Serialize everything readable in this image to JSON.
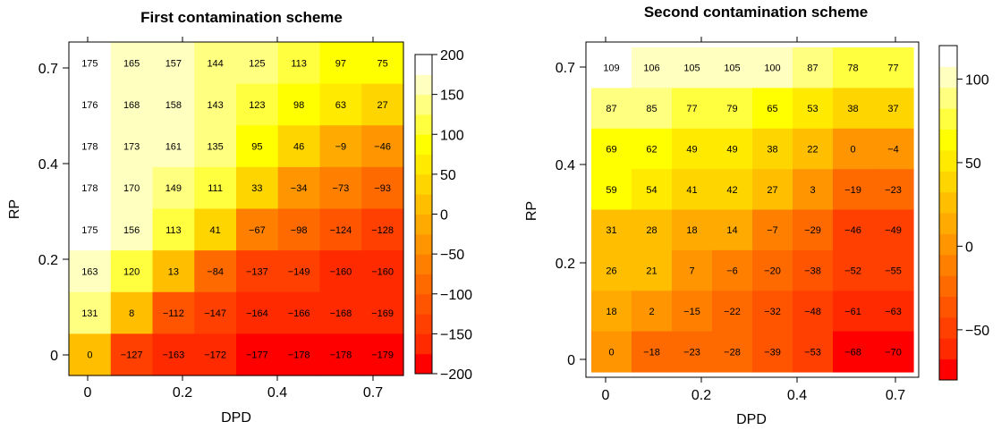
{
  "chart_data": [
    {
      "type": "heatmap",
      "title": "First contamination scheme",
      "xlabel": "DPD",
      "ylabel": "RP",
      "x_tick_labels": [
        "0",
        "0.2",
        "0.4",
        "0.7"
      ],
      "y_tick_labels": [
        "0",
        "0.2",
        "0.4",
        "0.7"
      ],
      "values": [
        [
          175,
          165,
          157,
          144,
          125,
          113,
          97,
          75
        ],
        [
          176,
          168,
          158,
          143,
          123,
          98,
          63,
          27
        ],
        [
          178,
          173,
          161,
          135,
          95,
          46,
          -9,
          -46
        ],
        [
          178,
          170,
          149,
          111,
          33,
          -34,
          -73,
          -93
        ],
        [
          175,
          156,
          113,
          41,
          -67,
          -98,
          -124,
          -128
        ],
        [
          163,
          120,
          13,
          -84,
          -137,
          -149,
          -160,
          -160
        ],
        [
          131,
          8,
          -112,
          -147,
          -164,
          -166,
          -168,
          -169
        ],
        [
          0,
          -127,
          -163,
          -172,
          -177,
          -178,
          -178,
          -179
        ]
      ],
      "labels": [
        [
          "175",
          "165",
          "157",
          "144",
          "125",
          "113",
          "97",
          "75"
        ],
        [
          "176",
          "168",
          "158",
          "143",
          "123",
          "98",
          "63",
          "27"
        ],
        [
          "178",
          "173",
          "161",
          "135",
          "95",
          "46",
          "−9",
          "−46"
        ],
        [
          "178",
          "170",
          "149",
          "111",
          "33",
          "−34",
          "−73",
          "−93"
        ],
        [
          "175",
          "156",
          "113",
          "41",
          "−67",
          "−98",
          "−124",
          "−128"
        ],
        [
          "163",
          "120",
          "13",
          "−84",
          "−137",
          "−149",
          "−160",
          "−160"
        ],
        [
          "131",
          "8",
          "−112",
          "−147",
          "−164",
          "−166",
          "−168",
          "−169"
        ],
        [
          "0",
          "−127",
          "−163",
          "−172",
          "−177",
          "−178",
          "−178",
          "−179"
        ]
      ],
      "color_range": [
        -200,
        200
      ],
      "colorbar_ticks": [
        -200,
        -150,
        -100,
        -50,
        0,
        50,
        100,
        150,
        200
      ],
      "colorbar_tick_labels": [
        "−200",
        "−150",
        "−100",
        "−50",
        "0",
        "50",
        "100",
        "150",
        "200"
      ]
    },
    {
      "type": "heatmap",
      "title": "Second contamination scheme",
      "xlabel": "DPD",
      "ylabel": "RP",
      "x_tick_labels": [
        "0",
        "0.2",
        "0.4",
        "0.7"
      ],
      "y_tick_labels": [
        "0",
        "0.2",
        "0.4",
        "0.7"
      ],
      "values": [
        [
          109,
          106,
          105,
          105,
          100,
          87,
          78,
          77
        ],
        [
          87,
          85,
          77,
          79,
          65,
          53,
          38,
          37
        ],
        [
          69,
          62,
          49,
          49,
          38,
          22,
          0,
          -4
        ],
        [
          59,
          54,
          41,
          42,
          27,
          3,
          -19,
          -23
        ],
        [
          31,
          28,
          18,
          14,
          -7,
          -29,
          -46,
          -49
        ],
        [
          26,
          21,
          7,
          -6,
          -20,
          -38,
          -52,
          -55
        ],
        [
          18,
          2,
          -15,
          -22,
          -32,
          -48,
          -61,
          -63
        ],
        [
          0,
          -18,
          -23,
          -28,
          -39,
          -53,
          -68,
          -70
        ]
      ],
      "labels": [
        [
          "109",
          "106",
          "105",
          "105",
          "100",
          "87",
          "78",
          "77"
        ],
        [
          "87",
          "85",
          "77",
          "79",
          "65",
          "53",
          "38",
          "37"
        ],
        [
          "69",
          "62",
          "49",
          "49",
          "38",
          "22",
          "0",
          "−4"
        ],
        [
          "59",
          "54",
          "41",
          "42",
          "27",
          "3",
          "−19",
          "−23"
        ],
        [
          "31",
          "28",
          "18",
          "14",
          "−7",
          "−29",
          "−46",
          "−49"
        ],
        [
          "26",
          "21",
          "7",
          "−6",
          "−20",
          "−38",
          "−52",
          "−55"
        ],
        [
          "18",
          "2",
          "−15",
          "−22",
          "−32",
          "−48",
          "−61",
          "−63"
        ],
        [
          "0",
          "−18",
          "−23",
          "−28",
          "−39",
          "−53",
          "−68",
          "−70"
        ]
      ],
      "color_range": [
        -80,
        120
      ],
      "colorbar_ticks": [
        -50,
        0,
        50,
        100
      ],
      "colorbar_tick_labels": [
        "−50",
        "0",
        "50",
        "100"
      ]
    }
  ],
  "colors": {
    "scale": [
      "#FF0000",
      "#FF2A00",
      "#FF4000",
      "#FF5500",
      "#FF6A00",
      "#FF8000",
      "#FF9500",
      "#FFAA00",
      "#FFBF00",
      "#FFD500",
      "#FFEA00",
      "#FFFF00",
      "#FFFF40",
      "#FFFF80",
      "#FFFFBF",
      "#FFFFFF"
    ]
  }
}
